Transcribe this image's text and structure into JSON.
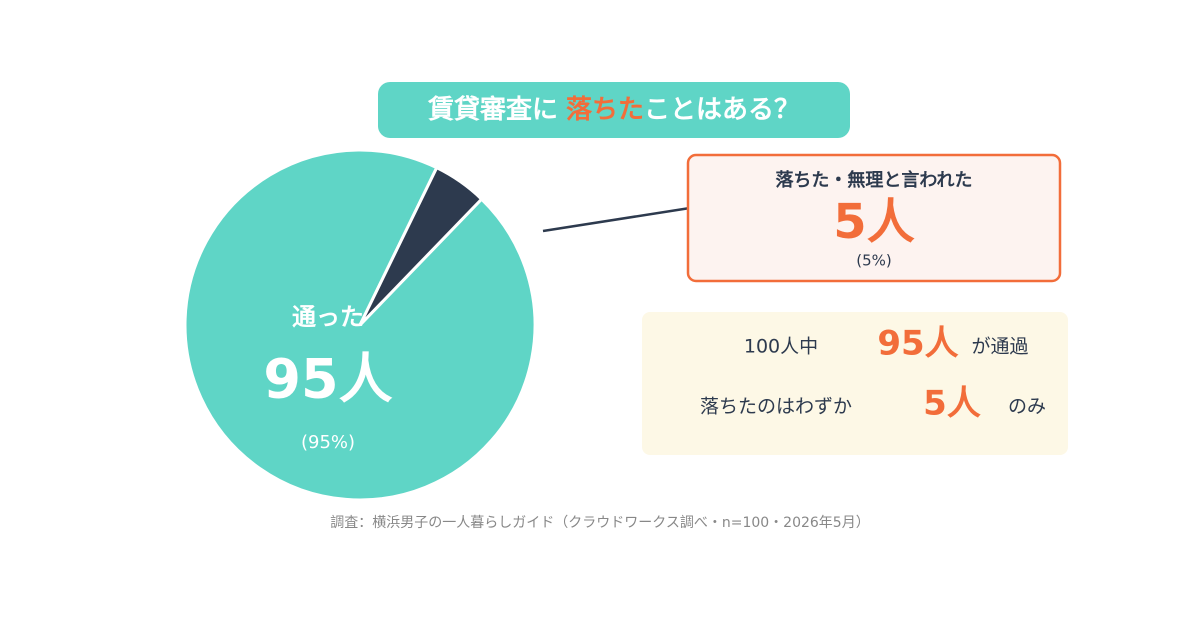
{
  "chart_data": {
    "type": "pie",
    "title_parts": [
      "賃貸審査に",
      "落ちた",
      "ことはある？"
    ],
    "categories": [
      "通った",
      "落ちた・無理と言われた"
    ],
    "values": [
      95,
      5
    ],
    "value_labels": [
      "95人",
      "5人"
    ],
    "percent_labels": [
      "(95%)",
      "(5%)"
    ],
    "colors": [
      "#5fd5c6",
      "#2d3a4e"
    ],
    "summary": [
      {
        "before": "100人中",
        "after": "が通過"
      },
      {
        "before": "落ちたのはわずか",
        "after": "のみ"
      }
    ],
    "source": "調査：横浜男子の一人暮らしガイド（クラウドワークス調べ・n=100・2026年5月）"
  }
}
